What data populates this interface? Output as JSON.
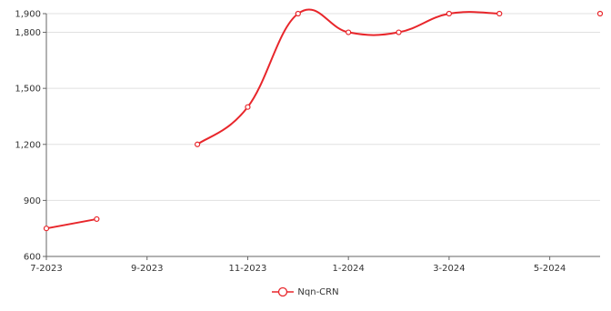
{
  "chart_data": {
    "type": "line",
    "title": "",
    "xlabel": "",
    "ylabel": "",
    "x_ticks": [
      "7-2023",
      "9-2023",
      "11-2023",
      "1-2024",
      "3-2024",
      "5-2024"
    ],
    "y_ticks": [
      "600",
      "900",
      "1,200",
      "1,500",
      "1,800",
      "1,900"
    ],
    "ylim": [
      600,
      1900
    ],
    "xlim": [
      "2023-07",
      "2024-06"
    ],
    "grid": true,
    "legend_position": "bottom",
    "series": [
      {
        "name": "Nqn-CRN",
        "color": "#e8262b",
        "points": [
          {
            "x": "2023-07",
            "y": 750
          },
          {
            "x": "2023-08",
            "y": 800
          },
          {
            "x": "2023-09",
            "y": null
          },
          {
            "x": "2023-10",
            "y": 1200
          },
          {
            "x": "2023-11",
            "y": 1400
          },
          {
            "x": "2023-12",
            "y": 1900
          },
          {
            "x": "2024-01",
            "y": 1800
          },
          {
            "x": "2024-02",
            "y": 1800
          },
          {
            "x": "2024-03",
            "y": 1900
          },
          {
            "x": "2024-04",
            "y": 1900
          },
          {
            "x": "2024-05",
            "y": null
          },
          {
            "x": "2024-06",
            "y": 1900
          }
        ]
      }
    ]
  }
}
